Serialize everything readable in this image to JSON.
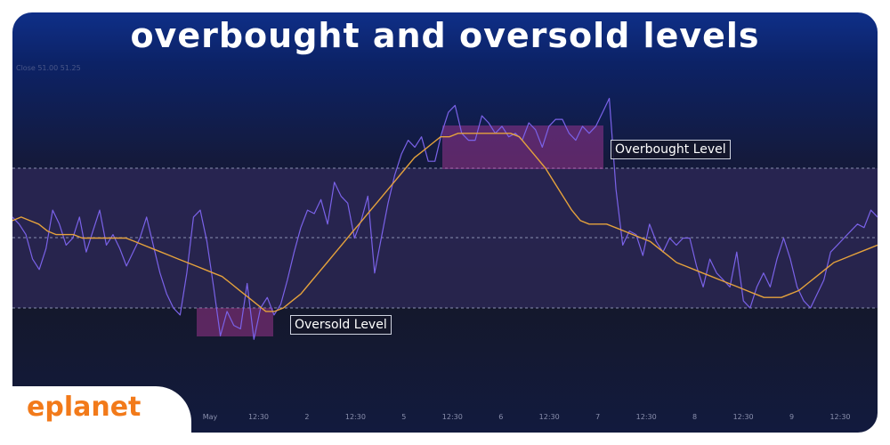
{
  "header": {
    "title": "overbought and oversold levels"
  },
  "brand": {
    "logo_text": "eplanet",
    "accent_color": "#f27a1a",
    "text_color": "#0d2a66"
  },
  "faint_legend": {
    "text": "Close 51.00 51.25"
  },
  "colors": {
    "oscillator": "#7a62e8",
    "signal": "#e5a23c",
    "band_fill": "#3a2e6a",
    "zone_fill": "#b13a9e",
    "threshold_line": "#8a8fb0"
  },
  "chart_data": {
    "type": "line",
    "title": "overbought and oversold levels",
    "xlabel": "",
    "ylabel": "",
    "ylim": [
      0,
      100
    ],
    "grid": false,
    "x_ticks": [
      "May",
      "12:30",
      "2",
      "12:30",
      "5",
      "12:30",
      "6",
      "12:30",
      "7",
      "12:30",
      "8",
      "12:30",
      "9",
      "12:30"
    ],
    "levels": {
      "overbought": 70,
      "middle": 50,
      "oversold": 30
    },
    "series": [
      {
        "name": "",
        "role": "oscillator",
        "values": [
          56,
          54,
          51,
          44,
          41,
          47,
          58,
          54,
          48,
          50,
          56,
          46,
          52,
          58,
          48,
          51,
          47,
          42,
          46,
          50,
          56,
          48,
          40,
          34,
          30,
          28,
          40,
          56,
          58,
          49,
          36,
          22,
          29,
          25,
          24,
          37,
          21,
          30,
          33,
          28,
          31,
          38,
          46,
          53,
          58,
          57,
          61,
          54,
          66,
          62,
          60,
          50,
          55,
          62,
          40,
          50,
          60,
          68,
          74,
          78,
          76,
          79,
          72,
          72,
          80,
          86,
          88,
          80,
          78,
          78,
          85,
          83,
          80,
          82,
          79,
          80,
          78,
          83,
          81,
          76,
          82,
          84,
          84,
          80,
          78,
          82,
          80,
          82,
          86,
          90,
          64,
          48,
          52,
          51,
          45,
          54,
          49,
          46,
          50,
          48,
          50,
          50,
          42,
          36,
          44,
          40,
          38,
          36,
          46,
          32,
          30,
          36,
          40,
          36,
          44,
          50,
          44,
          36,
          32,
          30,
          34,
          38,
          46,
          48,
          50,
          52,
          54,
          53,
          58,
          56
        ]
      },
      {
        "name": "",
        "role": "signal",
        "values": [
          55,
          56,
          55,
          54,
          52,
          51,
          51,
          51,
          50,
          50,
          50,
          50,
          50,
          50,
          49,
          48,
          47,
          46,
          45,
          44,
          43,
          42,
          41,
          40,
          39,
          37,
          35,
          33,
          31,
          29,
          29,
          30,
          32,
          34,
          37,
          40,
          43,
          46,
          49,
          52,
          55,
          58,
          61,
          64,
          67,
          70,
          73,
          75,
          77,
          79,
          79,
          80,
          80,
          80,
          80,
          80,
          80,
          80,
          79,
          76,
          73,
          70,
          66,
          62,
          58,
          55,
          54,
          54,
          54,
          53,
          52,
          51,
          50,
          49,
          47,
          45,
          43,
          42,
          41,
          40,
          39,
          38,
          37,
          36,
          35,
          34,
          33,
          33,
          33,
          34,
          35,
          37,
          39,
          41,
          43,
          44,
          45,
          46,
          47,
          48
        ]
      }
    ],
    "annotations": [
      {
        "label": "Overbought Level",
        "near": "overbought zone"
      },
      {
        "label": "Oversold Level",
        "near": "oversold zone"
      }
    ]
  }
}
